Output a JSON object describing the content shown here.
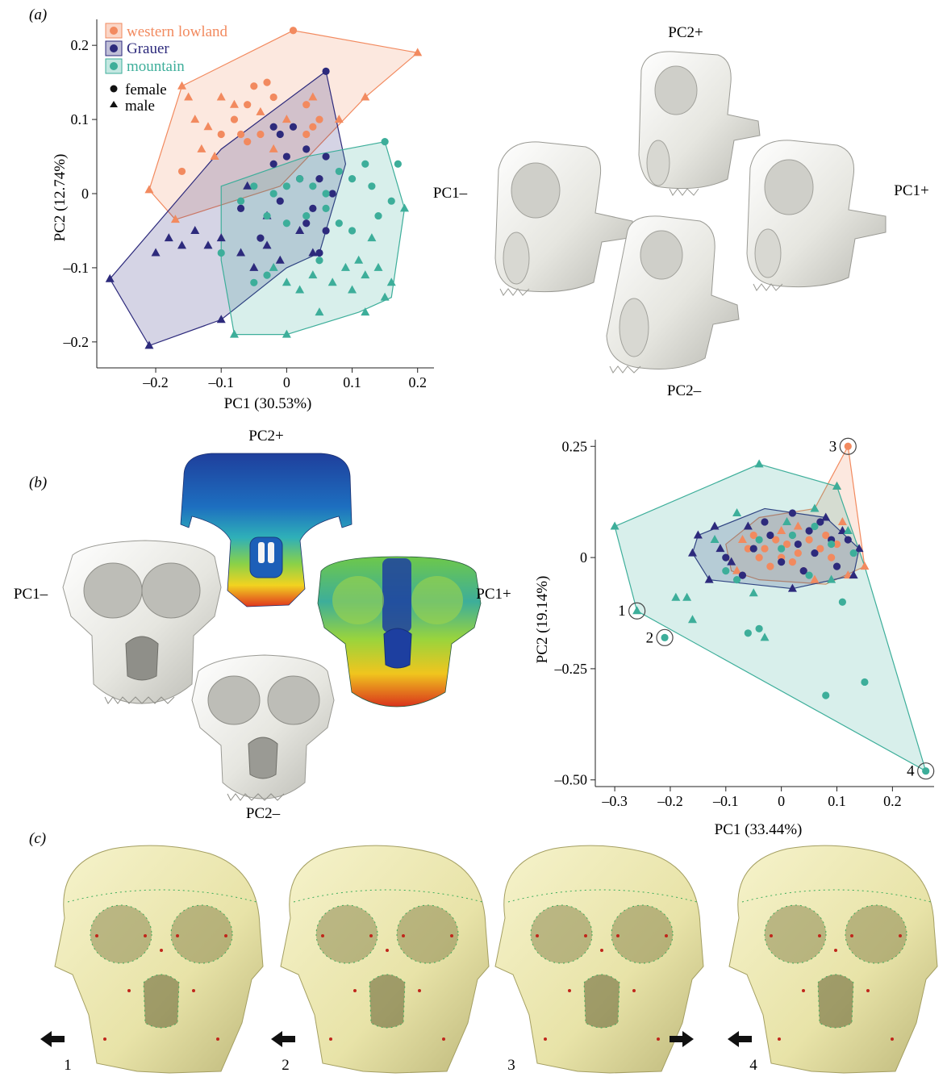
{
  "panels": {
    "a": "(a)",
    "b": "(b)",
    "c": "(c)"
  },
  "colors": {
    "western_lowland": "#F28A5F",
    "grauer": "#2D2A7C",
    "mountain": "#3DAE9A",
    "skull_white": "#ECECE8",
    "fossil": "#EDEAB6",
    "heat_blue": "#1B3FA0",
    "heat_red": "#E0351E"
  },
  "legend": {
    "groups": [
      "western lowland",
      "Grauer",
      "mountain"
    ],
    "sex": [
      "female",
      "male"
    ]
  },
  "morph_labels_a": {
    "top": "PC2+",
    "bottom": "PC2–",
    "left": "PC1–",
    "right": "PC1+"
  },
  "morph_labels_b": {
    "top": "PC2+",
    "bottom": "PC2–",
    "left": "PC1–",
    "right": "PC1+"
  },
  "fossil_numbers": [
    "1",
    "2",
    "3",
    "4"
  ],
  "fossil_arrows": [
    "left",
    "left",
    "right",
    "left"
  ],
  "chart_data": [
    {
      "type": "scatter",
      "xlabel": "PC1 (30.53%)",
      "ylabel": "PC2 (12.74%)",
      "xlim": [
        -0.29,
        0.225
      ],
      "ylim": [
        -0.235,
        0.235
      ],
      "xticks": [
        -0.2,
        -0.1,
        0,
        0.1,
        0.2
      ],
      "xtick_labels": [
        "–0.2",
        "–0.1",
        "0",
        "0.1",
        "0.2"
      ],
      "yticks": [
        -0.2,
        -0.1,
        0,
        0.1,
        0.2
      ],
      "ytick_labels": [
        "–0.2",
        "–0.1",
        "0",
        "0.1",
        "0.2"
      ],
      "series": [
        {
          "name": "western lowland",
          "hull": [
            [
              0.01,
              0.22
            ],
            [
              0.2,
              0.19
            ],
            [
              0.12,
              0.13
            ],
            [
              -0.01,
              0.01
            ],
            [
              -0.17,
              -0.035
            ],
            [
              -0.21,
              0.005
            ],
            [
              -0.16,
              0.145
            ]
          ],
          "female": [
            [
              -0.05,
              0.145
            ],
            [
              -0.03,
              0.15
            ],
            [
              -0.06,
              0.12
            ],
            [
              -0.02,
              0.13
            ],
            [
              -0.08,
              0.1
            ],
            [
              -0.1,
              0.08
            ],
            [
              -0.07,
              0.08
            ],
            [
              -0.04,
              0.08
            ],
            [
              -0.06,
              0.07
            ],
            [
              0.03,
              0.12
            ],
            [
              0.05,
              0.1
            ],
            [
              0.04,
              0.09
            ],
            [
              0.03,
              0.08
            ],
            [
              -0.16,
              0.03
            ],
            [
              0.01,
              0.22
            ]
          ],
          "male": [
            [
              -0.16,
              0.145
            ],
            [
              -0.15,
              0.13
            ],
            [
              -0.14,
              0.1
            ],
            [
              -0.12,
              0.09
            ],
            [
              -0.1,
              0.13
            ],
            [
              -0.08,
              0.12
            ],
            [
              -0.04,
              0.11
            ],
            [
              0.0,
              0.1
            ],
            [
              0.04,
              0.13
            ],
            [
              0.08,
              0.1
            ],
            [
              0.12,
              0.13
            ],
            [
              -0.13,
              0.06
            ],
            [
              -0.11,
              0.05
            ],
            [
              -0.02,
              0.06
            ],
            [
              0.2,
              0.19
            ],
            [
              -0.17,
              -0.035
            ],
            [
              -0.21,
              0.005
            ]
          ]
        },
        {
          "name": "Grauer",
          "hull": [
            [
              0.06,
              0.165
            ],
            [
              0.09,
              0.04
            ],
            [
              0.05,
              -0.08
            ],
            [
              0.0,
              -0.1
            ],
            [
              -0.1,
              -0.17
            ],
            [
              -0.21,
              -0.205
            ],
            [
              -0.27,
              -0.115
            ],
            [
              -0.1,
              0.06
            ]
          ],
          "female": [
            [
              0.06,
              0.165
            ],
            [
              -0.02,
              0.09
            ],
            [
              -0.01,
              0.08
            ],
            [
              0.01,
              0.09
            ],
            [
              0.03,
              0.06
            ],
            [
              0.06,
              0.05
            ],
            [
              0.0,
              0.05
            ],
            [
              -0.02,
              0.04
            ],
            [
              0.02,
              0.02
            ],
            [
              0.05,
              0.02
            ],
            [
              0.07,
              0.0
            ],
            [
              0.04,
              -0.02
            ],
            [
              -0.01,
              -0.01
            ],
            [
              0.06,
              -0.05
            ],
            [
              0.03,
              -0.04
            ],
            [
              0.05,
              -0.08
            ],
            [
              -0.04,
              -0.06
            ],
            [
              -0.07,
              -0.02
            ]
          ],
          "male": [
            [
              -0.27,
              -0.115
            ],
            [
              -0.21,
              -0.205
            ],
            [
              -0.2,
              -0.08
            ],
            [
              -0.18,
              -0.06
            ],
            [
              -0.16,
              -0.07
            ],
            [
              -0.14,
              -0.05
            ],
            [
              -0.12,
              -0.07
            ],
            [
              -0.1,
              -0.06
            ],
            [
              -0.07,
              -0.08
            ],
            [
              -0.05,
              -0.1
            ],
            [
              -0.03,
              -0.07
            ],
            [
              -0.01,
              -0.09
            ],
            [
              0.02,
              -0.05
            ],
            [
              0.04,
              -0.08
            ],
            [
              -0.1,
              -0.17
            ],
            [
              -0.06,
              0.01
            ],
            [
              -0.03,
              -0.03
            ]
          ]
        },
        {
          "name": "mountain",
          "hull": [
            [
              0.15,
              0.07
            ],
            [
              0.18,
              -0.02
            ],
            [
              0.16,
              -0.14
            ],
            [
              0.11,
              -0.16
            ],
            [
              0.0,
              -0.19
            ],
            [
              -0.08,
              -0.19
            ],
            [
              -0.1,
              -0.09
            ],
            [
              -0.1,
              0.01
            ],
            [
              0.03,
              0.05
            ]
          ],
          "female": [
            [
              0.15,
              0.07
            ],
            [
              0.12,
              0.04
            ],
            [
              0.1,
              0.02
            ],
            [
              0.08,
              0.03
            ],
            [
              0.06,
              0.0
            ],
            [
              0.04,
              0.01
            ],
            [
              0.02,
              0.02
            ],
            [
              0.0,
              0.01
            ],
            [
              -0.02,
              0.0
            ],
            [
              -0.05,
              0.01
            ],
            [
              -0.07,
              -0.01
            ],
            [
              -0.03,
              -0.03
            ],
            [
              0.0,
              -0.04
            ],
            [
              0.03,
              -0.03
            ],
            [
              0.06,
              -0.02
            ],
            [
              0.08,
              -0.04
            ],
            [
              0.1,
              -0.05
            ],
            [
              0.14,
              -0.03
            ],
            [
              0.16,
              -0.01
            ],
            [
              0.17,
              0.04
            ],
            [
              -0.1,
              -0.08
            ],
            [
              -0.05,
              -0.12
            ],
            [
              -0.03,
              -0.11
            ],
            [
              0.05,
              -0.09
            ],
            [
              0.13,
              0.01
            ]
          ],
          "male": [
            [
              0.18,
              -0.02
            ],
            [
              0.13,
              -0.06
            ],
            [
              0.11,
              -0.09
            ],
            [
              0.09,
              -0.1
            ],
            [
              0.12,
              -0.11
            ],
            [
              0.14,
              -0.1
            ],
            [
              0.16,
              -0.12
            ],
            [
              0.15,
              -0.14
            ],
            [
              0.07,
              -0.12
            ],
            [
              0.04,
              -0.11
            ],
            [
              0.02,
              -0.13
            ],
            [
              0.0,
              -0.12
            ],
            [
              -0.02,
              -0.1
            ],
            [
              0.05,
              -0.16
            ],
            [
              0.0,
              -0.19
            ],
            [
              -0.08,
              -0.19
            ],
            [
              0.1,
              -0.13
            ],
            [
              0.12,
              -0.16
            ]
          ]
        }
      ]
    },
    {
      "type": "scatter",
      "xlabel": "PC1 (33.44%)",
      "ylabel": "PC2 (19.14%)",
      "xlim": [
        -0.335,
        0.275
      ],
      "ylim": [
        -0.515,
        0.265
      ],
      "xticks": [
        -0.3,
        -0.2,
        -0.1,
        0,
        0.1,
        0.2
      ],
      "xtick_labels": [
        "–0.3",
        "–0.2",
        "–0.1",
        "0",
        "0.1",
        "0.2"
      ],
      "yticks": [
        0.25,
        0,
        -0.25,
        -0.5
      ],
      "ytick_labels": [
        "0.25",
        "0",
        "–0.25",
        "–0.50"
      ],
      "annotations": [
        {
          "label": "1",
          "x": -0.26,
          "y": -0.12
        },
        {
          "label": "2",
          "x": -0.21,
          "y": -0.18
        },
        {
          "label": "3",
          "x": 0.12,
          "y": 0.25
        },
        {
          "label": "4",
          "x": 0.26,
          "y": -0.48
        }
      ],
      "series": [
        {
          "name": "western lowland",
          "hull": [
            [
              0.12,
              0.25
            ],
            [
              0.15,
              -0.02
            ],
            [
              0.08,
              -0.06
            ],
            [
              -0.04,
              -0.05
            ],
            [
              -0.09,
              -0.03
            ],
            [
              -0.1,
              0.03
            ],
            [
              -0.04,
              0.09
            ],
            [
              0.06,
              0.11
            ]
          ],
          "female": [
            [
              0.12,
              0.25
            ],
            [
              -0.05,
              0.05
            ],
            [
              -0.03,
              0.02
            ],
            [
              -0.01,
              0.04
            ],
            [
              0.01,
              0.03
            ],
            [
              0.03,
              0.01
            ],
            [
              0.05,
              0.04
            ],
            [
              0.07,
              0.02
            ],
            [
              0.09,
              0.0
            ],
            [
              0.02,
              -0.01
            ],
            [
              -0.02,
              -0.02
            ],
            [
              0.04,
              -0.03
            ],
            [
              0.08,
              0.05
            ],
            [
              0.0,
              0.0
            ],
            [
              -0.06,
              0.02
            ],
            [
              0.1,
              0.03
            ],
            [
              -0.04,
              0.0
            ]
          ],
          "male": [
            [
              0.15,
              -0.02
            ],
            [
              0.1,
              0.16
            ],
            [
              -0.08,
              -0.03
            ],
            [
              0.12,
              -0.04
            ],
            [
              0.0,
              0.06
            ],
            [
              0.06,
              -0.05
            ],
            [
              -0.07,
              0.04
            ],
            [
              0.03,
              0.07
            ],
            [
              0.11,
              0.08
            ]
          ]
        },
        {
          "name": "Grauer",
          "hull": [
            [
              -0.03,
              0.11
            ],
            [
              0.08,
              0.09
            ],
            [
              0.14,
              0.02
            ],
            [
              0.13,
              -0.04
            ],
            [
              0.02,
              -0.07
            ],
            [
              -0.13,
              -0.05
            ],
            [
              -0.16,
              0.01
            ],
            [
              -0.15,
              0.05
            ]
          ],
          "female": [
            [
              -0.03,
              0.08
            ],
            [
              0.02,
              0.1
            ],
            [
              0.05,
              0.06
            ],
            [
              0.09,
              0.04
            ],
            [
              0.06,
              0.01
            ],
            [
              0.03,
              0.03
            ],
            [
              -0.05,
              0.02
            ],
            [
              -0.1,
              0.0
            ],
            [
              0.0,
              -0.01
            ],
            [
              -0.07,
              -0.04
            ],
            [
              0.04,
              -0.03
            ],
            [
              0.1,
              -0.02
            ],
            [
              0.12,
              0.04
            ],
            [
              -0.02,
              0.05
            ],
            [
              0.07,
              0.08
            ]
          ],
          "male": [
            [
              -0.15,
              0.05
            ],
            [
              -0.16,
              0.01
            ],
            [
              -0.13,
              -0.05
            ],
            [
              -0.11,
              0.02
            ],
            [
              -0.09,
              -0.01
            ],
            [
              0.13,
              -0.04
            ],
            [
              0.14,
              0.02
            ],
            [
              0.08,
              0.09
            ],
            [
              0.02,
              -0.07
            ],
            [
              -0.06,
              0.07
            ],
            [
              0.11,
              0.06
            ],
            [
              -0.12,
              0.07
            ]
          ]
        },
        {
          "name": "mountain",
          "hull": [
            [
              -0.04,
              0.21
            ],
            [
              0.1,
              0.16
            ],
            [
              0.15,
              -0.02
            ],
            [
              0.26,
              -0.48
            ],
            [
              -0.26,
              -0.12
            ],
            [
              -0.3,
              0.07
            ]
          ],
          "female": [
            [
              -0.21,
              -0.18
            ],
            [
              0.26,
              -0.48
            ],
            [
              -0.04,
              -0.16
            ],
            [
              0.08,
              -0.31
            ],
            [
              0.15,
              -0.28
            ],
            [
              -0.06,
              -0.17
            ],
            [
              0.09,
              0.03
            ],
            [
              -0.04,
              0.04
            ],
            [
              0.0,
              0.02
            ],
            [
              0.05,
              -0.04
            ],
            [
              -0.08,
              -0.05
            ],
            [
              0.11,
              -0.1
            ],
            [
              0.02,
              0.05
            ],
            [
              0.13,
              0.01
            ],
            [
              -0.1,
              -0.03
            ],
            [
              0.06,
              0.07
            ]
          ],
          "male": [
            [
              -0.26,
              -0.12
            ],
            [
              -0.3,
              0.07
            ],
            [
              -0.04,
              0.21
            ],
            [
              0.1,
              0.16
            ],
            [
              -0.19,
              -0.09
            ],
            [
              -0.17,
              -0.09
            ],
            [
              -0.16,
              -0.14
            ],
            [
              -0.03,
              -0.18
            ],
            [
              -0.08,
              0.1
            ],
            [
              0.01,
              0.08
            ],
            [
              0.06,
              0.11
            ],
            [
              0.12,
              0.06
            ],
            [
              -0.12,
              0.04
            ],
            [
              0.09,
              -0.05
            ],
            [
              -0.05,
              -0.08
            ]
          ]
        }
      ]
    }
  ]
}
